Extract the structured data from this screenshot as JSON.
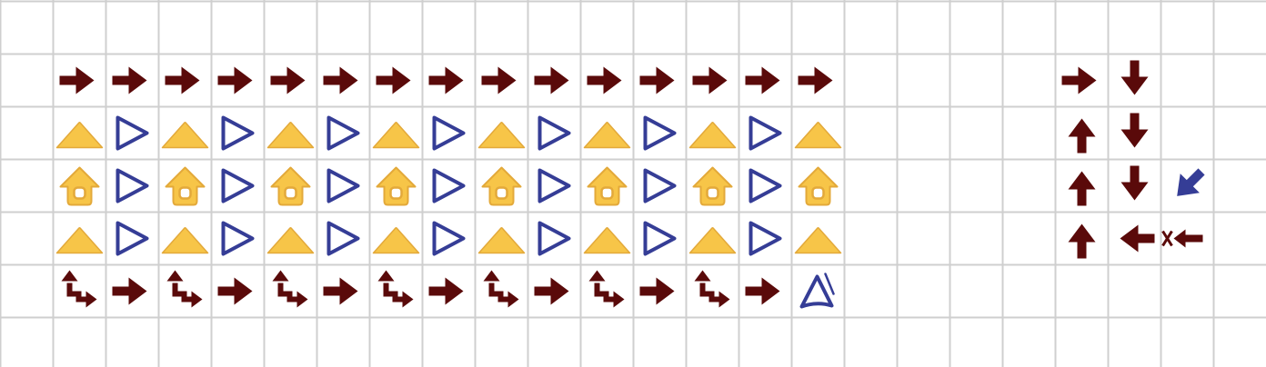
{
  "colors": {
    "background": "#ffffff",
    "grid_line": "#cfcfcf",
    "arrow": "#5a0a0a",
    "gold_fill": "#f7c548",
    "gold_stroke": "#e3a93a",
    "blue": "#353d96",
    "house_inner": "#ffffff"
  },
  "grid": {
    "columns": 24,
    "rows": 7
  },
  "cells": [
    {
      "row": 1,
      "col": 1,
      "icon": "arrow-right-icon"
    },
    {
      "row": 1,
      "col": 2,
      "icon": "arrow-right-icon"
    },
    {
      "row": 1,
      "col": 3,
      "icon": "arrow-right-icon"
    },
    {
      "row": 1,
      "col": 4,
      "icon": "arrow-right-icon"
    },
    {
      "row": 1,
      "col": 5,
      "icon": "arrow-right-icon"
    },
    {
      "row": 1,
      "col": 6,
      "icon": "arrow-right-icon"
    },
    {
      "row": 1,
      "col": 7,
      "icon": "arrow-right-icon"
    },
    {
      "row": 1,
      "col": 8,
      "icon": "arrow-right-icon"
    },
    {
      "row": 1,
      "col": 9,
      "icon": "arrow-right-icon"
    },
    {
      "row": 1,
      "col": 10,
      "icon": "arrow-right-icon"
    },
    {
      "row": 1,
      "col": 11,
      "icon": "arrow-right-icon"
    },
    {
      "row": 1,
      "col": 12,
      "icon": "arrow-right-icon"
    },
    {
      "row": 1,
      "col": 13,
      "icon": "arrow-right-icon"
    },
    {
      "row": 1,
      "col": 14,
      "icon": "arrow-right-icon"
    },
    {
      "row": 1,
      "col": 15,
      "icon": "arrow-right-icon"
    },
    {
      "row": 2,
      "col": 1,
      "icon": "gold-mound-icon"
    },
    {
      "row": 2,
      "col": 2,
      "icon": "blue-play-triangle-icon"
    },
    {
      "row": 2,
      "col": 3,
      "icon": "gold-mound-icon"
    },
    {
      "row": 2,
      "col": 4,
      "icon": "blue-play-triangle-icon"
    },
    {
      "row": 2,
      "col": 5,
      "icon": "gold-mound-icon"
    },
    {
      "row": 2,
      "col": 6,
      "icon": "blue-play-triangle-icon"
    },
    {
      "row": 2,
      "col": 7,
      "icon": "gold-mound-icon"
    },
    {
      "row": 2,
      "col": 8,
      "icon": "blue-play-triangle-icon"
    },
    {
      "row": 2,
      "col": 9,
      "icon": "gold-mound-icon"
    },
    {
      "row": 2,
      "col": 10,
      "icon": "blue-play-triangle-icon"
    },
    {
      "row": 2,
      "col": 11,
      "icon": "gold-mound-icon"
    },
    {
      "row": 2,
      "col": 12,
      "icon": "blue-play-triangle-icon"
    },
    {
      "row": 2,
      "col": 13,
      "icon": "gold-mound-icon"
    },
    {
      "row": 2,
      "col": 14,
      "icon": "blue-play-triangle-icon"
    },
    {
      "row": 2,
      "col": 15,
      "icon": "gold-mound-icon"
    },
    {
      "row": 3,
      "col": 1,
      "icon": "gold-house-icon"
    },
    {
      "row": 3,
      "col": 2,
      "icon": "blue-play-triangle-icon"
    },
    {
      "row": 3,
      "col": 3,
      "icon": "gold-house-icon"
    },
    {
      "row": 3,
      "col": 4,
      "icon": "blue-play-triangle-icon"
    },
    {
      "row": 3,
      "col": 5,
      "icon": "gold-house-icon"
    },
    {
      "row": 3,
      "col": 6,
      "icon": "blue-play-triangle-icon"
    },
    {
      "row": 3,
      "col": 7,
      "icon": "gold-house-icon"
    },
    {
      "row": 3,
      "col": 8,
      "icon": "blue-play-triangle-icon"
    },
    {
      "row": 3,
      "col": 9,
      "icon": "gold-house-icon"
    },
    {
      "row": 3,
      "col": 10,
      "icon": "blue-play-triangle-icon"
    },
    {
      "row": 3,
      "col": 11,
      "icon": "gold-house-icon"
    },
    {
      "row": 3,
      "col": 12,
      "icon": "blue-play-triangle-icon"
    },
    {
      "row": 3,
      "col": 13,
      "icon": "gold-house-icon"
    },
    {
      "row": 3,
      "col": 14,
      "icon": "blue-play-triangle-icon"
    },
    {
      "row": 3,
      "col": 15,
      "icon": "gold-house-icon"
    },
    {
      "row": 4,
      "col": 1,
      "icon": "gold-mound-icon"
    },
    {
      "row": 4,
      "col": 2,
      "icon": "blue-play-triangle-icon"
    },
    {
      "row": 4,
      "col": 3,
      "icon": "gold-mound-icon"
    },
    {
      "row": 4,
      "col": 4,
      "icon": "blue-play-triangle-icon"
    },
    {
      "row": 4,
      "col": 5,
      "icon": "gold-mound-icon"
    },
    {
      "row": 4,
      "col": 6,
      "icon": "blue-play-triangle-icon"
    },
    {
      "row": 4,
      "col": 7,
      "icon": "gold-mound-icon"
    },
    {
      "row": 4,
      "col": 8,
      "icon": "blue-play-triangle-icon"
    },
    {
      "row": 4,
      "col": 9,
      "icon": "gold-mound-icon"
    },
    {
      "row": 4,
      "col": 10,
      "icon": "blue-play-triangle-icon"
    },
    {
      "row": 4,
      "col": 11,
      "icon": "gold-mound-icon"
    },
    {
      "row": 4,
      "col": 12,
      "icon": "blue-play-triangle-icon"
    },
    {
      "row": 4,
      "col": 13,
      "icon": "gold-mound-icon"
    },
    {
      "row": 4,
      "col": 14,
      "icon": "blue-play-triangle-icon"
    },
    {
      "row": 4,
      "col": 15,
      "icon": "gold-mound-icon"
    },
    {
      "row": 5,
      "col": 1,
      "icon": "step-up-right-arrow-icon"
    },
    {
      "row": 5,
      "col": 2,
      "icon": "arrow-right-icon"
    },
    {
      "row": 5,
      "col": 3,
      "icon": "step-up-right-arrow-icon"
    },
    {
      "row": 5,
      "col": 4,
      "icon": "arrow-right-icon"
    },
    {
      "row": 5,
      "col": 5,
      "icon": "step-up-right-arrow-icon"
    },
    {
      "row": 5,
      "col": 6,
      "icon": "arrow-right-icon"
    },
    {
      "row": 5,
      "col": 7,
      "icon": "step-up-right-arrow-icon"
    },
    {
      "row": 5,
      "col": 8,
      "icon": "arrow-right-icon"
    },
    {
      "row": 5,
      "col": 9,
      "icon": "step-up-right-arrow-icon"
    },
    {
      "row": 5,
      "col": 10,
      "icon": "arrow-right-icon"
    },
    {
      "row": 5,
      "col": 11,
      "icon": "step-up-right-arrow-icon"
    },
    {
      "row": 5,
      "col": 12,
      "icon": "arrow-right-icon"
    },
    {
      "row": 5,
      "col": 13,
      "icon": "step-up-right-arrow-icon"
    },
    {
      "row": 5,
      "col": 14,
      "icon": "arrow-right-icon"
    },
    {
      "row": 5,
      "col": 15,
      "icon": "blue-sail-triangle-icon"
    },
    {
      "row": 1,
      "col": 20,
      "icon": "arrow-right-icon"
    },
    {
      "row": 1,
      "col": 21,
      "icon": "arrow-down-icon"
    },
    {
      "row": 2,
      "col": 20,
      "icon": "arrow-up-icon"
    },
    {
      "row": 2,
      "col": 21,
      "icon": "arrow-down-icon"
    },
    {
      "row": 3,
      "col": 20,
      "icon": "arrow-up-icon"
    },
    {
      "row": 3,
      "col": 21,
      "icon": "arrow-down-icon"
    },
    {
      "row": 3,
      "col": 22,
      "icon": "blue-arrow-down-left-icon"
    },
    {
      "row": 4,
      "col": 20,
      "icon": "arrow-up-icon"
    },
    {
      "row": 4,
      "col": 21,
      "icon": "arrow-left-icon"
    },
    {
      "row": 4,
      "col": 22,
      "icon": "arrow-left-crossed-tail-icon"
    }
  ]
}
